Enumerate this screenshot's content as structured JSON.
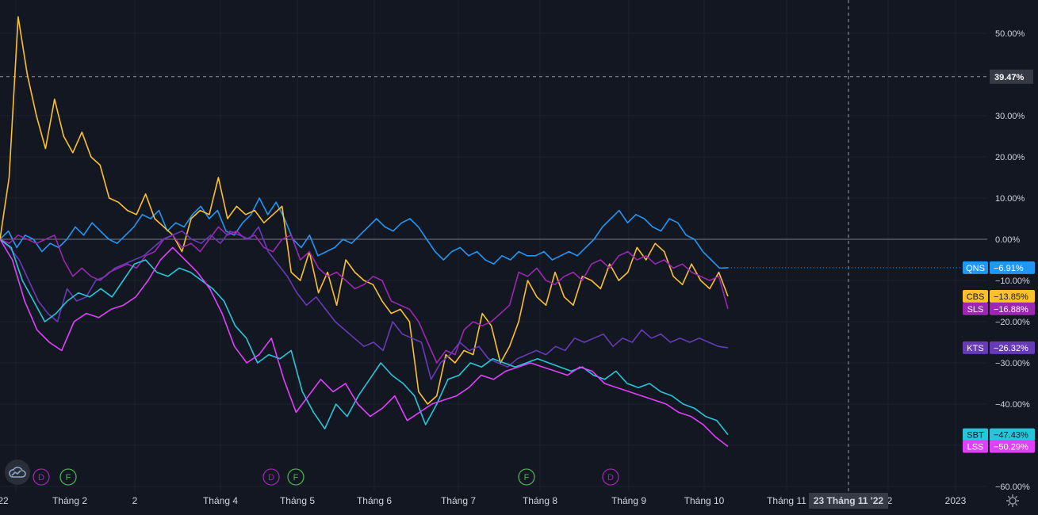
{
  "chart_data": {
    "type": "line",
    "percent_scale": true,
    "ylim": [
      -62,
      58
    ],
    "y_ticks": [
      "50.00%",
      "40.00%",
      "30.00%",
      "20.00%",
      "10.00%",
      "0.00%",
      "−10.00%",
      "−20.00%",
      "−30.00%",
      "−40.00%",
      "−50.00%",
      "−60.00%"
    ],
    "y_tick_values": [
      50,
      40,
      30,
      20,
      10,
      0,
      -10,
      -20,
      -30,
      -40,
      -50,
      -60
    ],
    "x_labels": [
      "22",
      "Tháng 2",
      "2",
      "Tháng 4",
      "Tháng 5",
      "Tháng 6",
      "Tháng 7",
      "Tháng 8",
      "Tháng 9",
      "Tháng 10",
      "Tháng 11",
      "2",
      "2023"
    ],
    "crosshair": {
      "y_value": "39.47%",
      "x_label": "23 Tháng 11 '22"
    },
    "zero_line": true,
    "grid": true,
    "series": [
      {
        "name": "QNS",
        "label": "−6.91%",
        "color": "#2196f3",
        "last": -6.91,
        "values": [
          0,
          2,
          -2,
          1,
          0,
          -3,
          -1,
          -2,
          0,
          3,
          1,
          4,
          2,
          0,
          -1,
          1,
          3,
          6,
          5,
          7,
          2,
          4,
          3,
          6,
          8,
          5,
          7,
          2,
          1,
          4,
          6,
          10,
          6,
          9,
          5,
          0,
          -2,
          1,
          -4,
          -3,
          -2,
          0,
          -1,
          1,
          3,
          5,
          3,
          2,
          4,
          5,
          3,
          0,
          -3,
          -5,
          -3,
          -2,
          -4,
          -3,
          -5,
          -6,
          -4,
          -5,
          -3,
          -4,
          -4,
          -3,
          -5,
          -4,
          -3,
          -4,
          -2,
          0,
          3,
          5,
          7,
          4,
          6,
          5,
          3,
          2,
          5,
          4,
          1,
          0,
          -3,
          -5,
          -7,
          -6.91
        ]
      },
      {
        "name": "CBS",
        "label": "−13.85%",
        "color": "#fbc02d",
        "last": -13.85,
        "values": [
          0,
          15,
          54,
          40,
          30,
          22,
          34,
          25,
          21,
          26,
          20,
          18,
          10,
          9,
          7,
          6,
          11,
          5,
          3,
          1,
          -3,
          5,
          7,
          6,
          15,
          5,
          8,
          6,
          7,
          4,
          6,
          8,
          -8,
          -10,
          -3,
          -13,
          -8,
          -16,
          -5,
          -8,
          -10,
          -11,
          -15,
          -18,
          -17,
          -20,
          -37,
          -40,
          -38,
          -28,
          -30,
          -27,
          -28,
          -18,
          -21,
          -30,
          -26,
          -20,
          -10,
          -14,
          -16,
          -8,
          -14,
          -16,
          -9,
          -10,
          -12,
          -6,
          -10,
          -8,
          -2,
          -5,
          -1,
          -3,
          -9,
          -11,
          -6,
          -10,
          -12,
          -8,
          -13.85
        ]
      },
      {
        "name": "SLS",
        "label": "−16.88%",
        "color": "#9c27b0",
        "last": -16.88,
        "values": [
          0,
          -1,
          1,
          0,
          -1,
          0,
          1,
          -5,
          -9,
          -7,
          -9,
          -10,
          -8,
          -7,
          -6,
          -7,
          -4,
          -3,
          0,
          1,
          -2,
          -1,
          -3,
          0,
          3,
          1,
          2,
          0,
          1,
          -2,
          -3,
          0,
          1,
          -5,
          -3,
          -7,
          -9,
          -8,
          -10,
          -12,
          -11,
          -9,
          -10,
          -15,
          -16,
          -17,
          -20,
          -25,
          -30,
          -27,
          -28,
          -22,
          -20,
          -21,
          -20,
          -18,
          -16,
          -8,
          -9,
          -7,
          -10,
          -11,
          -9,
          -8,
          -10,
          -6,
          -5,
          -7,
          -4,
          -3,
          -5,
          -4,
          -6,
          -5,
          -7,
          -6,
          -8,
          -9,
          -10,
          -9,
          -16.88
        ]
      },
      {
        "name": "KTS",
        "label": "−26.32%",
        "color": "#673ab7",
        "last": -26.32,
        "values": [
          0,
          -2,
          -5,
          -10,
          -15,
          -18,
          -20,
          -12,
          -15,
          -14,
          -10,
          -9,
          -7,
          -6,
          -5,
          -4,
          -2,
          0,
          1,
          2,
          0,
          -1,
          1,
          -1,
          2,
          1,
          0,
          3,
          -3,
          -6,
          -9,
          -13,
          -16,
          -14,
          -17,
          -20,
          -22,
          -24,
          -26,
          -25,
          -27,
          -20,
          -23,
          -24,
          -25,
          -34,
          -30,
          -28,
          -25,
          -27,
          -26,
          -29,
          -30,
          -31,
          -29,
          -28,
          -27,
          -28,
          -26,
          -27,
          -24,
          -25,
          -24,
          -23,
          -26,
          -24,
          -25,
          -22,
          -24,
          -23,
          -25,
          -24,
          -25,
          -24,
          -25,
          -26,
          -26.32
        ]
      },
      {
        "name": "SBT",
        "label": "−47.43%",
        "color": "#26c6da",
        "last": -47.43,
        "values": [
          0,
          -2,
          -10,
          -15,
          -20,
          -18,
          -15,
          -13,
          -14,
          -12,
          -14,
          -10,
          -6,
          -5,
          -8,
          -9,
          -7,
          -8,
          -10,
          -12,
          -15,
          -21,
          -24,
          -30,
          -28,
          -29,
          -27,
          -37,
          -42,
          -46,
          -40,
          -43,
          -38,
          -34,
          -30,
          -33,
          -35,
          -38,
          -45,
          -40,
          -34,
          -33,
          -30,
          -31,
          -29,
          -30,
          -31,
          -30,
          -29,
          -30,
          -31,
          -32,
          -31,
          -33,
          -34,
          -32,
          -35,
          -36,
          -35,
          -37,
          -38,
          -40,
          -41,
          -43,
          -44,
          -47.43
        ]
      },
      {
        "name": "LSS",
        "label": "−50.29%",
        "color": "#e040fb",
        "last": -50.29,
        "values": [
          0,
          -5,
          -15,
          -22,
          -25,
          -27,
          -20,
          -18,
          -19,
          -17,
          -16,
          -14,
          -10,
          -5,
          -2,
          -5,
          -8,
          -12,
          -18,
          -26,
          -30,
          -28,
          -24,
          -34,
          -42,
          -38,
          -34,
          -37,
          -35,
          -40,
          -43,
          -41,
          -38,
          -44,
          -42,
          -40,
          -39,
          -38,
          -36,
          -33,
          -34,
          -32,
          -31,
          -30,
          -31,
          -32,
          -33,
          -31,
          -32,
          -35,
          -36,
          -37,
          -38,
          -39,
          -40,
          -42,
          -43,
          -45,
          -48,
          -50.29
        ]
      }
    ]
  },
  "events": [
    {
      "letter": "D",
      "color": "#9c27b0"
    },
    {
      "letter": "F",
      "color": "#4caf50"
    },
    {
      "letter": "D",
      "color": "#9c27b0"
    },
    {
      "letter": "F",
      "color": "#4caf50"
    },
    {
      "letter": "F",
      "color": "#4caf50"
    },
    {
      "letter": "D",
      "color": "#9c27b0"
    }
  ],
  "icons": {
    "logo": "tradingview-cloud-icon",
    "settings": "gear-icon"
  },
  "colors": {
    "background": "#131722",
    "grid": "#1e222d",
    "text": "#d1d4dc"
  }
}
